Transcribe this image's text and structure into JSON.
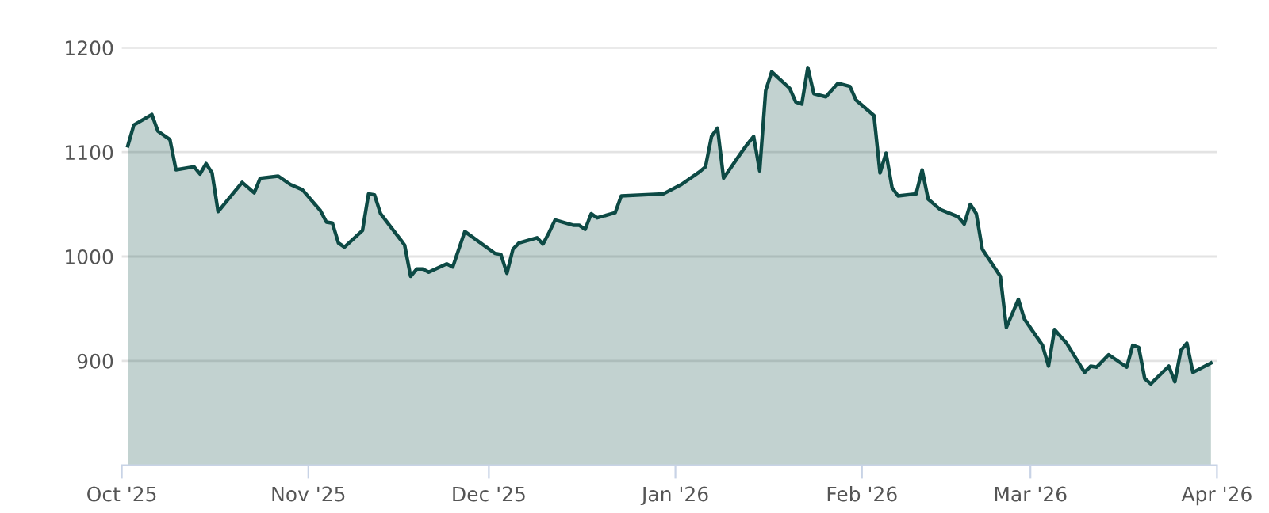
{
  "chart_data": {
    "type": "area",
    "x": [
      "2025-10-02",
      "2025-10-03",
      "2025-10-06",
      "2025-10-07",
      "2025-10-09",
      "2025-10-10",
      "2025-10-13",
      "2025-10-14",
      "2025-10-15",
      "2025-10-16",
      "2025-10-17",
      "2025-10-21",
      "2025-10-23",
      "2025-10-24",
      "2025-10-27",
      "2025-10-29",
      "2025-10-31",
      "2025-11-03",
      "2025-11-04",
      "2025-11-05",
      "2025-11-06",
      "2025-11-07",
      "2025-11-10",
      "2025-11-11",
      "2025-11-12",
      "2025-11-13",
      "2025-11-17",
      "2025-11-18",
      "2025-11-19",
      "2025-11-20",
      "2025-11-21",
      "2025-11-24",
      "2025-11-25",
      "2025-11-27",
      "2025-12-02",
      "2025-12-03",
      "2025-12-04",
      "2025-12-05",
      "2025-12-06",
      "2025-12-09",
      "2025-12-10",
      "2025-12-11",
      "2025-12-12",
      "2025-12-15",
      "2025-12-16",
      "2025-12-17",
      "2025-12-18",
      "2025-12-19",
      "2025-12-22",
      "2025-12-23",
      "2025-12-30",
      "2026-01-02",
      "2026-01-05",
      "2026-01-06",
      "2026-01-07",
      "2026-01-08",
      "2026-01-09",
      "2026-01-12",
      "2026-01-13",
      "2026-01-14",
      "2026-01-15",
      "2026-01-16",
      "2026-01-17",
      "2026-01-20",
      "2026-01-21",
      "2026-01-22",
      "2026-01-23",
      "2026-01-24",
      "2026-01-26",
      "2026-01-28",
      "2026-01-30",
      "2026-01-31",
      "2026-02-03",
      "2026-02-04",
      "2026-02-05",
      "2026-02-06",
      "2026-02-07",
      "2026-02-10",
      "2026-02-11",
      "2026-02-12",
      "2026-02-14",
      "2026-02-17",
      "2026-02-18",
      "2026-02-19",
      "2026-02-20",
      "2026-02-21",
      "2026-02-24",
      "2026-02-25",
      "2026-02-27",
      "2026-02-28",
      "2026-03-03",
      "2026-03-04",
      "2026-03-05",
      "2026-03-07",
      "2026-03-10",
      "2026-03-11",
      "2026-03-12",
      "2026-03-14",
      "2026-03-17",
      "2026-03-18",
      "2026-03-19",
      "2026-03-20",
      "2026-03-21",
      "2026-03-24",
      "2026-03-25",
      "2026-03-26",
      "2026-03-27",
      "2026-03-28",
      "2026-03-31"
    ],
    "series": [
      {
        "color": "#0d4a45",
        "values": [
          1106,
          1126,
          1136,
          1120,
          1112,
          1083,
          1086,
          1079,
          1089,
          1080,
          1043,
          1071,
          1061,
          1075,
          1077,
          1069,
          1064,
          1044,
          1033,
          1032,
          1013,
          1009,
          1025,
          1060,
          1059,
          1041,
          1011,
          981,
          988,
          988,
          985,
          993,
          990,
          1024,
          1003,
          1002,
          984,
          1007,
          1013,
          1018,
          1012,
          1023,
          1035,
          1030,
          1030,
          1026,
          1041,
          1037,
          1042,
          1058,
          1060,
          1069,
          1081,
          1086,
          1115,
          1123,
          1075,
          1100,
          1108,
          1115,
          1082,
          1159,
          1177,
          1161,
          1148,
          1146,
          1181,
          1156,
          1153,
          1166,
          1163,
          1150,
          1135,
          1080,
          1099,
          1066,
          1058,
          1060,
          1083,
          1055,
          1045,
          1038,
          1031,
          1050,
          1041,
          1007,
          981,
          932,
          959,
          940,
          915,
          895,
          930,
          917,
          889,
          895,
          894,
          906,
          894,
          915,
          913,
          883,
          878,
          895,
          880,
          910,
          917,
          889,
          898
        ]
      }
    ],
    "xlim": [
      "2025-10-01",
      "2026-04-01"
    ],
    "xticks": [
      {
        "value": "2025-10-01",
        "label": "Oct '25"
      },
      {
        "value": "2025-11-01",
        "label": "Nov '25"
      },
      {
        "value": "2025-12-01",
        "label": "Dec '25"
      },
      {
        "value": "2026-01-01",
        "label": "Jan '26"
      },
      {
        "value": "2026-02-01",
        "label": "Feb '26"
      },
      {
        "value": "2026-03-01",
        "label": "Mar '26"
      },
      {
        "value": "2026-04-01",
        "label": "Apr '26"
      }
    ],
    "ylim": [
      800,
      1200
    ],
    "yticks": [
      900,
      1000,
      1100,
      1200
    ],
    "grid": "y",
    "marker": "none",
    "line_style": "solid"
  }
}
